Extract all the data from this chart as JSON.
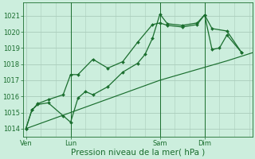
{
  "xlabel": "Pression niveau de la mer( hPa )",
  "bg_color": "#cceedd",
  "plot_bg_color": "#cceedd",
  "grid_color": "#aaccbb",
  "line_color": "#1a6e2e",
  "ylim": [
    1013.5,
    1021.8
  ],
  "yticks": [
    1014,
    1015,
    1016,
    1017,
    1018,
    1019,
    1020,
    1021
  ],
  "xtick_labels": [
    "Ven",
    "Lun",
    "Sam",
    "Dim"
  ],
  "xtick_positions": [
    0,
    3,
    9,
    12
  ],
  "xlim": [
    -0.2,
    15.2
  ],
  "series1_x": [
    0,
    0.4,
    0.8,
    1.5,
    2.5,
    3.0,
    3.5,
    4.0,
    4.5,
    5.5,
    6.5,
    7.5,
    8.0,
    8.5,
    9.0,
    9.5,
    10.5,
    11.5,
    12.0,
    12.5,
    13.0,
    13.5,
    14.5
  ],
  "series1_y": [
    1014.0,
    1015.15,
    1015.5,
    1015.6,
    1014.8,
    1014.4,
    1015.9,
    1016.3,
    1016.1,
    1016.6,
    1017.5,
    1018.05,
    1018.6,
    1019.6,
    1021.1,
    1020.5,
    1020.4,
    1020.55,
    1021.05,
    1018.9,
    1019.0,
    1019.8,
    1018.7
  ],
  "series2_x": [
    0,
    0.4,
    0.8,
    1.5,
    2.5,
    3.0,
    3.5,
    4.5,
    5.5,
    6.5,
    7.5,
    8.5,
    9.0,
    9.5,
    10.5,
    11.5,
    12.0,
    12.5,
    13.5,
    14.5
  ],
  "series2_y": [
    1014.0,
    1015.15,
    1015.55,
    1015.8,
    1016.1,
    1017.35,
    1017.35,
    1018.3,
    1017.75,
    1018.15,
    1019.35,
    1020.45,
    1020.55,
    1020.4,
    1020.3,
    1020.45,
    1021.05,
    1020.2,
    1020.05,
    1018.7
  ],
  "series3_x": [
    0,
    4.5,
    9.0,
    13.5,
    15.2
  ],
  "series3_y": [
    1014.0,
    1015.5,
    1017.0,
    1018.2,
    1018.7
  ],
  "vline_positions": [
    3,
    9,
    12
  ],
  "figsize": [
    3.2,
    2.0
  ],
  "dpi": 100,
  "tick_fontsize": 6,
  "xlabel_fontsize": 7.5
}
